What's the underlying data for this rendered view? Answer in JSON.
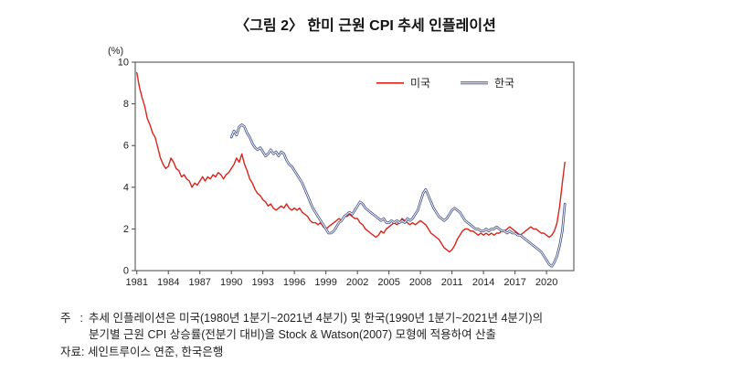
{
  "title": "〈그림 2〉 한미 근원 CPI 추세 인플레이션",
  "chart_data": {
    "type": "line",
    "title": "〈그림 2〉 한미 근원 CPI 추세 인플레이션",
    "y_axis_label": "(%)",
    "ylim": [
      0,
      10
    ],
    "y_ticks": [
      0,
      2,
      4,
      6,
      8,
      10
    ],
    "xlim": [
      1980.85,
      2022.6
    ],
    "x_ticks": [
      1981,
      1984,
      1987,
      1990,
      1993,
      1996,
      1999,
      2002,
      2005,
      2008,
      2011,
      2014,
      2017,
      2020
    ],
    "grid": false,
    "legend_position": "top-right-inside",
    "series": [
      {
        "name": "미국",
        "color": "#d8251c",
        "style": "solid",
        "start": 1981.0,
        "step": 0.25,
        "values": [
          9.5,
          8.8,
          8.3,
          7.9,
          7.3,
          7.0,
          6.6,
          6.4,
          5.9,
          5.4,
          5.1,
          4.9,
          5.0,
          5.4,
          5.2,
          4.9,
          4.8,
          4.5,
          4.6,
          4.4,
          4.3,
          4.0,
          4.2,
          4.1,
          4.3,
          4.5,
          4.3,
          4.5,
          4.4,
          4.6,
          4.5,
          4.7,
          4.6,
          4.4,
          4.6,
          4.7,
          4.9,
          5.1,
          5.4,
          5.2,
          5.6,
          5.1,
          4.8,
          4.4,
          4.2,
          3.9,
          3.7,
          3.6,
          3.4,
          3.3,
          3.1,
          3.2,
          3.0,
          2.9,
          3.0,
          3.1,
          3.0,
          3.2,
          3.0,
          2.9,
          3.0,
          2.9,
          3.0,
          2.8,
          2.7,
          2.6,
          2.4,
          2.3,
          2.3,
          2.2,
          2.3,
          2.1,
          2.0,
          2.1,
          2.2,
          2.3,
          2.4,
          2.5,
          2.4,
          2.6,
          2.6,
          2.7,
          2.6,
          2.5,
          2.5,
          2.3,
          2.2,
          2.0,
          1.9,
          1.8,
          1.7,
          1.6,
          1.7,
          1.9,
          1.8,
          2.0,
          2.1,
          2.2,
          2.3,
          2.2,
          2.3,
          2.5,
          2.4,
          2.3,
          2.2,
          2.3,
          2.2,
          2.3,
          2.4,
          2.3,
          2.2,
          2.0,
          1.8,
          1.7,
          1.6,
          1.5,
          1.3,
          1.1,
          1.0,
          0.9,
          1.0,
          1.2,
          1.5,
          1.7,
          1.9,
          2.0,
          2.0,
          1.9,
          1.9,
          1.8,
          1.7,
          1.8,
          1.7,
          1.8,
          1.7,
          1.8,
          1.7,
          1.8,
          1.8,
          1.9,
          1.9,
          2.0,
          2.1,
          2.0,
          1.9,
          1.8,
          1.7,
          1.8,
          1.9,
          2.0,
          2.1,
          2.0,
          2.0,
          1.9,
          1.8,
          1.8,
          1.7,
          1.6,
          1.7,
          1.9,
          2.3,
          3.1,
          4.2,
          5.2
        ]
      },
      {
        "name": "한국",
        "color": "#3b4a80",
        "style": "double",
        "start": 1990.0,
        "step": 0.25,
        "values": [
          6.4,
          6.7,
          6.5,
          6.9,
          7.0,
          6.9,
          6.6,
          6.4,
          6.1,
          5.9,
          5.8,
          5.9,
          5.7,
          5.5,
          5.6,
          5.8,
          5.6,
          5.7,
          5.5,
          5.7,
          5.6,
          5.3,
          5.1,
          5.0,
          4.8,
          4.6,
          4.4,
          4.2,
          3.9,
          3.6,
          3.3,
          3.0,
          2.8,
          2.6,
          2.4,
          2.2,
          2.0,
          1.8,
          1.8,
          1.9,
          2.1,
          2.3,
          2.4,
          2.6,
          2.7,
          2.8,
          2.7,
          2.9,
          3.1,
          3.3,
          3.2,
          3.0,
          2.9,
          2.8,
          2.7,
          2.6,
          2.5,
          2.4,
          2.5,
          2.3,
          2.3,
          2.4,
          2.3,
          2.4,
          2.3,
          2.4,
          2.3,
          2.5,
          2.4,
          2.5,
          2.7,
          2.9,
          3.3,
          3.7,
          3.9,
          3.6,
          3.3,
          3.0,
          2.8,
          2.6,
          2.5,
          2.4,
          2.5,
          2.7,
          2.9,
          3.0,
          2.9,
          2.8,
          2.6,
          2.4,
          2.3,
          2.2,
          2.1,
          2.0,
          2.0,
          1.9,
          1.9,
          2.0,
          1.9,
          2.0,
          2.0,
          2.1,
          2.0,
          1.9,
          1.9,
          1.8,
          1.9,
          1.8,
          1.8,
          1.7,
          1.7,
          1.6,
          1.5,
          1.4,
          1.3,
          1.2,
          1.1,
          1.0,
          0.9,
          0.7,
          0.5,
          0.3,
          0.2,
          0.4,
          0.7,
          1.2,
          1.9,
          3.2
        ]
      }
    ]
  },
  "notes": {
    "note_label": "주",
    "note_colon": ":",
    "note_lines": [
      "추세 인플레이션은 미국(1980년 1분기~2021년 4분기) 및 한국(1990년 1분기~2021년 4분기)의",
      "분기별 근원 CPI 상승률(전분기 대비)을 Stock & Watson(2007) 모형에 적용하여 산출"
    ],
    "source_text": "자료: 세인트루이스 연준, 한국은행"
  }
}
